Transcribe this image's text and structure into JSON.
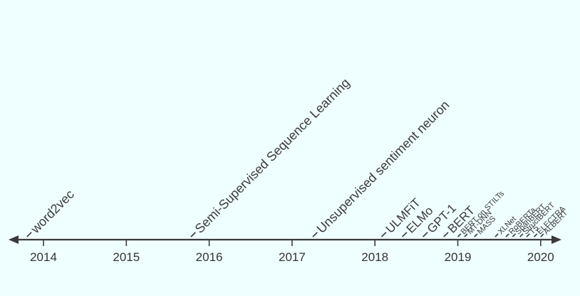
{
  "timeline": {
    "years": [
      "2014",
      "2015",
      "2016",
      "2017",
      "2018",
      "2019",
      "2020"
    ],
    "events": [
      {
        "label": "word2vec",
        "date": 2013.8
      },
      {
        "label": "Semi-Supervised Sequence Learning",
        "date": 2015.78
      },
      {
        "label": "Unsupervised sentiment neuron",
        "date": 2017.25
      },
      {
        "label": "ULMFiT",
        "date": 2018.08
      },
      {
        "label": "ELMo",
        "date": 2018.33
      },
      {
        "label": "GPT-1",
        "date": 2018.58
      },
      {
        "label": "BERT",
        "date": 2018.83
      },
      {
        "label": "BERT on STILTs",
        "date": 2019.0
      },
      {
        "label": "MT-DNN",
        "date": 2019.08
      },
      {
        "label": "MASS",
        "date": 2019.2
      },
      {
        "label": "XLNet",
        "date": 2019.45
      },
      {
        "label": "RoBERTa",
        "date": 2019.58
      },
      {
        "label": "SpanBERT",
        "date": 2019.66
      },
      {
        "label": "StructBERT",
        "date": 2019.75
      },
      {
        "label": "T5",
        "date": 2019.83
      },
      {
        "label": "ELECTRA",
        "date": 2019.92
      },
      {
        "label": "ALBERT",
        "date": 2020.0
      }
    ]
  }
}
